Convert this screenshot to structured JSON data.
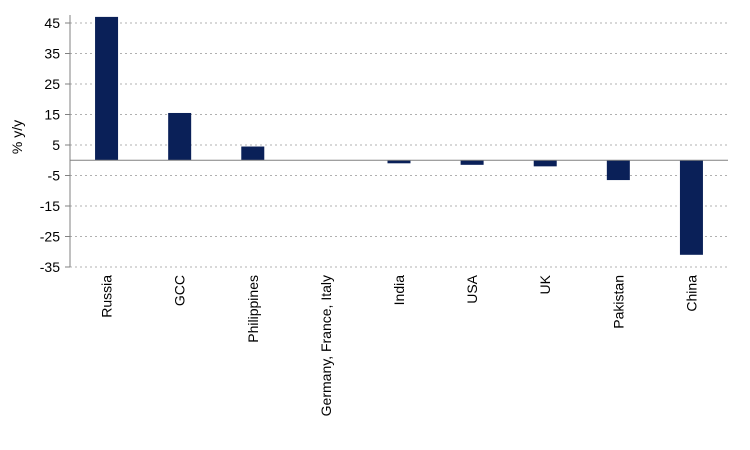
{
  "chart_data": {
    "type": "bar",
    "ylabel": "% y/y",
    "xlabel": "",
    "ylim": [
      -35,
      45
    ],
    "y_ticks": [
      45,
      35,
      25,
      15,
      5,
      -5,
      -15,
      -25,
      -35
    ],
    "y_tick_labels": [
      "45",
      "35",
      "25",
      "15",
      "5",
      "-5",
      "-15",
      "-25",
      "-35"
    ],
    "grid": "horizontal dotted",
    "categories": [
      "Russia",
      "GCC",
      "Philippines",
      "Germany, France, Italy",
      "India",
      "USA",
      "UK",
      "Pakistan",
      "China"
    ],
    "values": [
      47,
      15.5,
      4.5,
      0,
      -1,
      -1.5,
      -2,
      -6.5,
      -31
    ],
    "bar_color": "#0a2058"
  }
}
